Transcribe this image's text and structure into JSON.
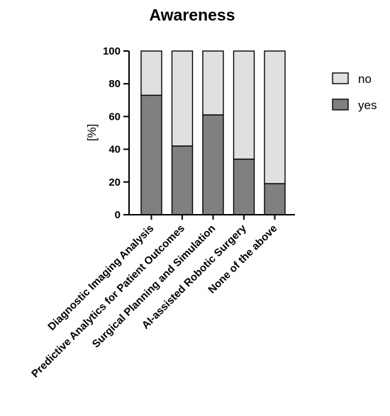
{
  "chart_data": {
    "type": "bar",
    "stacked": true,
    "title": "Awareness",
    "xlabel": "",
    "ylabel": "[%]",
    "ylim": [
      0,
      100
    ],
    "yticks": [
      "0",
      "20",
      "40",
      "60",
      "80",
      "100"
    ],
    "grid": false,
    "legend_placement": "right",
    "categories": [
      "Diagnostic Imaging Analysis",
      "Predictive Analytics for Patient Outcomes",
      "Surgical Planning and Simulation",
      "AI-assisted Robotic Surgery",
      "None of the above"
    ],
    "series": [
      {
        "name": "yes",
        "color": "#808080",
        "values": [
          73,
          42,
          61,
          34,
          19
        ]
      },
      {
        "name": "no",
        "color": "#e0e0e0",
        "values": [
          27,
          58,
          39,
          66,
          81
        ]
      }
    ],
    "legend": [
      {
        "name": "no",
        "color": "#e0e0e0"
      },
      {
        "name": "yes",
        "color": "#808080"
      }
    ]
  }
}
